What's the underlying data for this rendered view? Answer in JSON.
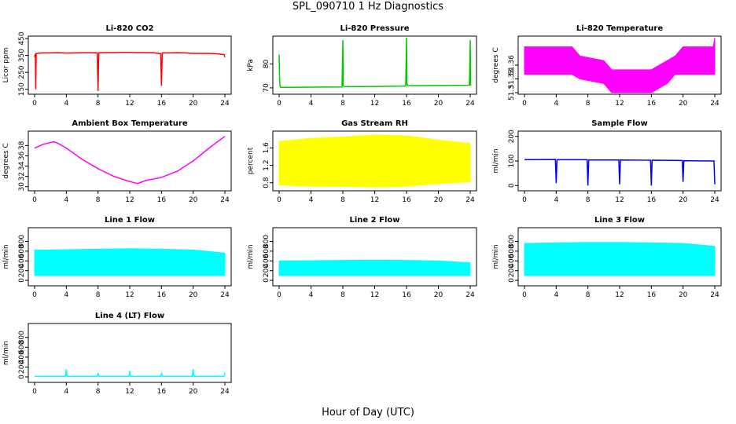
{
  "figure": {
    "title": "SPL_090710  1 Hz Diagnostics",
    "xlabel": "Hour of Day (UTC)"
  },
  "chart_data": [
    {
      "type": "line",
      "title": "Li-820 CO2",
      "ylabel": "Licor ppm",
      "color": "#ff0000",
      "xlim": [
        0,
        24
      ],
      "ylim": [
        130,
        455
      ],
      "xticks": [
        "0",
        "4",
        "8",
        "12",
        "16",
        "20",
        "24"
      ],
      "yticks": [
        150,
        250,
        350,
        450
      ],
      "x": [
        0,
        0.1,
        0.15,
        0.2,
        1,
        2,
        3,
        4,
        5,
        6,
        7,
        7.9,
        8,
        8.1,
        9,
        10,
        11,
        12,
        13,
        14,
        15,
        15.9,
        16,
        16.1,
        17,
        18,
        19,
        20,
        21,
        22,
        23,
        23.9,
        24
      ],
      "y": [
        340,
        360,
        150,
        362,
        365,
        365,
        366,
        364,
        365,
        366,
        366,
        365,
        140,
        366,
        367,
        367,
        368,
        368,
        367,
        367,
        366,
        360,
        170,
        365,
        365,
        366,
        365,
        362,
        362,
        362,
        360,
        355,
        340
      ]
    },
    {
      "type": "line",
      "title": "Li-820 Pressure",
      "ylabel": "kPa",
      "color": "#00c800",
      "xlim": [
        0,
        24
      ],
      "ylim": [
        68,
        91
      ],
      "xticks": [
        "0",
        "4",
        "8",
        "12",
        "16",
        "20",
        "24"
      ],
      "yticks": [
        70,
        80
      ],
      "x": [
        0,
        0.05,
        0.1,
        0.2,
        4,
        7.9,
        8,
        8.05,
        8.2,
        12,
        15.9,
        16,
        16.05,
        16.2,
        20,
        23.9,
        24,
        24.05
      ],
      "y": [
        84,
        75,
        71,
        70.2,
        70.3,
        70.4,
        90,
        71,
        70.5,
        70.6,
        70.8,
        91,
        71.5,
        70.9,
        71.0,
        71.1,
        90,
        71
      ]
    },
    {
      "type": "area",
      "title": "Li-820 Temperature",
      "ylabel": "degrees C",
      "color": "#ff00ff",
      "xlim": [
        0,
        24
      ],
      "ylim": [
        51.3,
        51.42
      ],
      "xticks": [
        "0",
        "4",
        "8",
        "12",
        "16",
        "20",
        "24"
      ],
      "yticks": [
        51.3,
        51.33,
        51.36
      ],
      "x": [
        0,
        6,
        7,
        10,
        11,
        16,
        18,
        19,
        20,
        23.8,
        24
      ],
      "high": [
        51.4,
        51.4,
        51.38,
        51.37,
        51.35,
        51.35,
        51.37,
        51.38,
        51.4,
        51.4,
        51.42
      ],
      "low": [
        51.34,
        51.34,
        51.33,
        51.32,
        51.3,
        51.3,
        51.32,
        51.34,
        51.34,
        51.34,
        51.34
      ]
    },
    {
      "type": "line",
      "title": "Ambient Box Temperature",
      "ylabel": "degrees C",
      "color": "#ff00ff",
      "xlim": [
        0,
        24
      ],
      "ylim": [
        29.5,
        40.5
      ],
      "xticks": [
        "0",
        "4",
        "8",
        "12",
        "16",
        "20",
        "24"
      ],
      "yticks": [
        30,
        32,
        34,
        36,
        38
      ],
      "x": [
        0,
        1,
        2,
        2.5,
        3,
        4,
        6,
        8,
        10,
        12,
        13,
        14,
        16,
        18,
        20,
        22,
        24
      ],
      "y": [
        37.5,
        38.2,
        38.6,
        38.7,
        38.4,
        37.5,
        35.3,
        33.5,
        32.0,
        31.0,
        30.6,
        31.2,
        31.8,
        33.0,
        35.0,
        37.5,
        39.8
      ]
    },
    {
      "type": "area",
      "title": "Gas Stream RH",
      "ylabel": "percent",
      "color": "#ffff00",
      "xlim": [
        0,
        24
      ],
      "ylim": [
        0.65,
        1.95
      ],
      "xticks": [
        "0",
        "4",
        "8",
        "12",
        "16",
        "20",
        "24"
      ],
      "yticks": [
        0.8,
        1.2,
        1.6
      ],
      "x": [
        0,
        4,
        8,
        12,
        16,
        20,
        24
      ],
      "high": [
        1.75,
        1.82,
        1.85,
        1.9,
        1.88,
        1.78,
        1.7
      ],
      "low": [
        0.75,
        0.72,
        0.72,
        0.7,
        0.72,
        0.78,
        0.82
      ]
    },
    {
      "type": "line",
      "title": "Sample Flow",
      "ylabel": "ml/min",
      "color": "#0000ff",
      "xlim": [
        0,
        24
      ],
      "ylim": [
        -15,
        215
      ],
      "xticks": [
        "0",
        "4",
        "8",
        "12",
        "16",
        "20",
        "24"
      ],
      "yticks": [
        0,
        100,
        200
      ],
      "x": [
        0,
        3.9,
        4,
        4.1,
        7.9,
        8,
        8.1,
        11.9,
        12,
        12.1,
        15.9,
        16,
        16.1,
        19.9,
        20,
        20.1,
        23.9,
        24
      ],
      "y": [
        105,
        106,
        10,
        105,
        105,
        0,
        104,
        104,
        5,
        104,
        103,
        0,
        103,
        102,
        15,
        101,
        100,
        5
      ]
    },
    {
      "type": "area",
      "title": "Line 1 Flow",
      "ylabel": "ml/min",
      "color": "#00ffff",
      "xlim": [
        0,
        24
      ],
      "ylim": [
        -80,
        1050
      ],
      "xticks": [
        "0",
        "4",
        "8",
        "12",
        "16",
        "20",
        "24"
      ],
      "yticks": [
        0,
        200,
        400,
        600,
        800
      ],
      "x": [
        0,
        4,
        8,
        12,
        16,
        20,
        24
      ],
      "high": [
        620,
        630,
        640,
        650,
        640,
        625,
        560
      ],
      "low": [
        100,
        100,
        100,
        100,
        100,
        100,
        100
      ]
    },
    {
      "type": "area",
      "title": "Line 2 Flow",
      "ylabel": "ml/min",
      "color": "#00ffff",
      "xlim": [
        0,
        24
      ],
      "ylim": [
        -80,
        1050
      ],
      "xticks": [
        "0",
        "4",
        "8",
        "12",
        "16",
        "20",
        "24"
      ],
      "yticks": [
        0,
        200,
        400,
        600,
        800
      ],
      "x": [
        0,
        4,
        8,
        12,
        16,
        20,
        24
      ],
      "high": [
        400,
        405,
        410,
        415,
        410,
        400,
        360
      ],
      "low": [
        100,
        100,
        100,
        100,
        100,
        100,
        100
      ]
    },
    {
      "type": "area",
      "title": "Line 3 Flow",
      "ylabel": "ml/min",
      "color": "#00ffff",
      "xlim": [
        0,
        24
      ],
      "ylim": [
        -80,
        1050
      ],
      "xticks": [
        "0",
        "4",
        "8",
        "12",
        "16",
        "20",
        "24"
      ],
      "yticks": [
        0,
        200,
        400,
        600,
        800
      ],
      "x": [
        0,
        4,
        8,
        12,
        16,
        20,
        24
      ],
      "high": [
        760,
        770,
        780,
        780,
        770,
        760,
        700
      ],
      "low": [
        100,
        100,
        100,
        100,
        100,
        100,
        100
      ]
    },
    {
      "type": "line",
      "title": "Line 4 (LT) Flow",
      "ylabel": "ml/min",
      "color": "#00ffff",
      "xlim": [
        0,
        24
      ],
      "ylim": [
        -80,
        1050
      ],
      "xticks": [
        "0",
        "4",
        "8",
        "12",
        "16",
        "20",
        "24"
      ],
      "yticks": [
        0,
        200,
        400,
        600,
        800
      ],
      "x": [
        0,
        3.9,
        4,
        4.1,
        7.9,
        8,
        8.1,
        11.9,
        12,
        12.1,
        15.9,
        16,
        16.1,
        19.9,
        20,
        20.1,
        23.9,
        24
      ],
      "y": [
        10,
        10,
        150,
        10,
        10,
        80,
        10,
        10,
        120,
        10,
        10,
        70,
        10,
        10,
        160,
        10,
        10,
        90
      ]
    }
  ]
}
